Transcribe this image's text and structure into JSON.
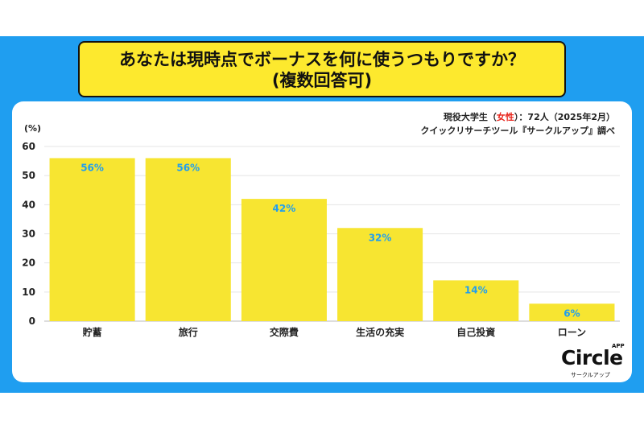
{
  "title": {
    "line1": "あなたは現時点でボーナスを何に使うつもりですか？",
    "line2": "(複数回答可)"
  },
  "source": {
    "prefix": "現役大学生（",
    "highlight": "女性",
    "suffix": "）：72人（2025年2月）",
    "line2": "クイックリサーチツール『サークルアップ』調べ"
  },
  "logo": {
    "word": "Circle",
    "app": "APP",
    "sub": "サークルアップ"
  },
  "colors": {
    "background_band": "#1f9ef0",
    "bar": "#f7e531",
    "bar_label": "#1f9ef0",
    "highlight": "#e8231a"
  },
  "chart_data": {
    "type": "bar",
    "categories": [
      "貯蓄",
      "旅行",
      "交際費",
      "生活の充実",
      "自己投資",
      "ローン"
    ],
    "values": [
      56,
      56,
      42,
      32,
      14,
      6
    ],
    "data_labels": [
      "56%",
      "56%",
      "42%",
      "32%",
      "14%",
      "6%"
    ],
    "title": "",
    "xlabel": "",
    "ylabel": "(%)",
    "ylim": [
      0,
      60
    ],
    "yticks": [
      0,
      10,
      20,
      30,
      40,
      50,
      60
    ],
    "grid": true,
    "legend": "none"
  }
}
